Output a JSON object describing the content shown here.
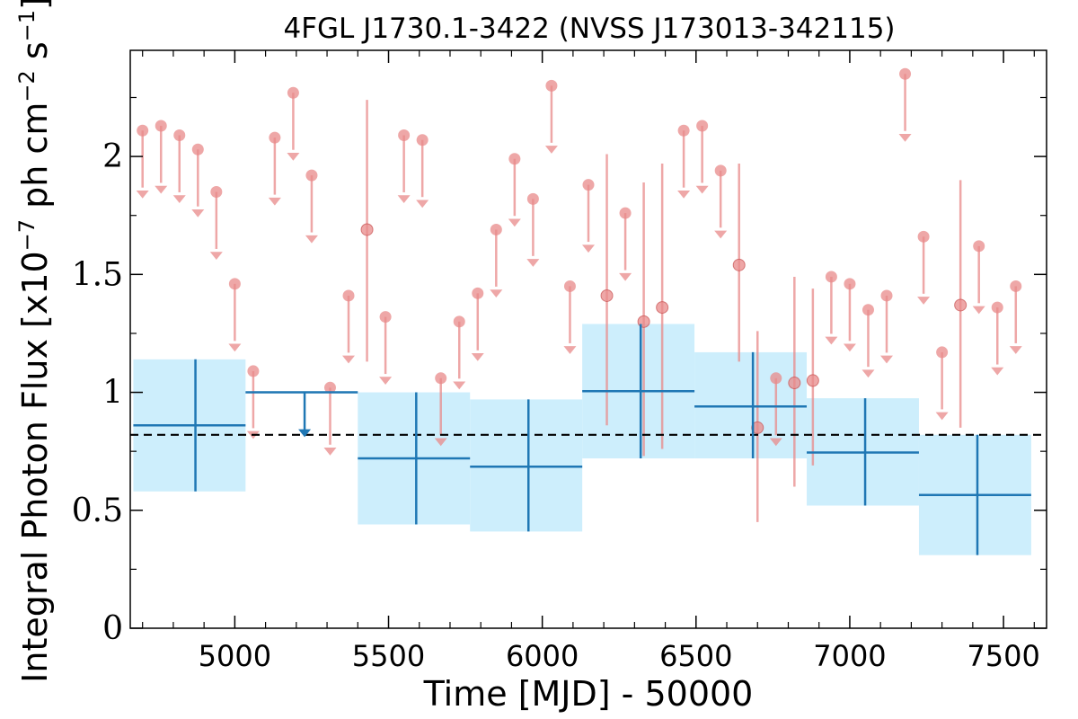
{
  "chart_data": {
    "type": "scatter",
    "title": "4FGL J1730.1-3422 (NVSS J173013-342115)",
    "xlabel": "Time [MJD] - 50000",
    "ylabel_base": "Integral Photon Flux [x10",
    "ylabel_exp1": "−7",
    "ylabel_mid": " ph cm",
    "ylabel_exp2": "−2",
    "ylabel_s": " s",
    "ylabel_exp3": "−1",
    "ylabel_end": "]",
    "xlim": [
      4660,
      7640
    ],
    "ylim": [
      0,
      2.45
    ],
    "xticks": [
      5000,
      5500,
      6000,
      6500,
      7000,
      7500
    ],
    "xtick_labels": [
      "5000",
      "5500",
      "6000",
      "6500",
      "7000",
      "7500"
    ],
    "yticks": [
      0,
      0.5,
      1,
      1.5,
      2
    ],
    "ytick_labels": [
      "0",
      "0.5",
      "1",
      "1.5",
      "2"
    ],
    "mean_flux": 0.82,
    "colors": {
      "yearly": "#1f77b4",
      "band": "#cdeefc",
      "monthly": "#e88a8a",
      "mean_line": "#000000"
    },
    "yearly_bins": [
      {
        "x_start": 4670,
        "x_end": 5035,
        "x": 4872,
        "y": 0.86,
        "err_lo": 0.58,
        "err_hi": 1.14,
        "upper_limit": false
      },
      {
        "x_start": 5035,
        "x_end": 5400,
        "x": 5227,
        "y": 1.0,
        "upper_limit": true
      },
      {
        "x_start": 5400,
        "x_end": 5765,
        "x": 5590,
        "y": 0.72,
        "err_lo": 0.44,
        "err_hi": 1.0,
        "upper_limit": false
      },
      {
        "x_start": 5765,
        "x_end": 6130,
        "x": 5955,
        "y": 0.685,
        "err_lo": 0.41,
        "err_hi": 0.97,
        "upper_limit": false
      },
      {
        "x_start": 6130,
        "x_end": 6495,
        "x": 6320,
        "y": 1.005,
        "err_lo": 0.72,
        "err_hi": 1.29,
        "upper_limit": false
      },
      {
        "x_start": 6495,
        "x_end": 6860,
        "x": 6685,
        "y": 0.94,
        "err_lo": 0.72,
        "err_hi": 1.17,
        "upper_limit": false
      },
      {
        "x_start": 6860,
        "x_end": 7225,
        "x": 7050,
        "y": 0.745,
        "err_lo": 0.52,
        "err_hi": 0.975,
        "upper_limit": false
      },
      {
        "x_start": 7225,
        "x_end": 7590,
        "x": 7415,
        "y": 0.565,
        "err_lo": 0.31,
        "err_hi": 0.82,
        "upper_limit": false
      }
    ],
    "monthly_points": [
      {
        "x": 4700,
        "y": 2.11,
        "upper_limit": true
      },
      {
        "x": 4760,
        "y": 2.13,
        "upper_limit": true
      },
      {
        "x": 4820,
        "y": 2.09,
        "upper_limit": true
      },
      {
        "x": 4880,
        "y": 2.03,
        "upper_limit": true
      },
      {
        "x": 4940,
        "y": 1.85,
        "upper_limit": true
      },
      {
        "x": 5000,
        "y": 1.46,
        "upper_limit": true
      },
      {
        "x": 5060,
        "y": 1.09,
        "upper_limit": true
      },
      {
        "x": 5130,
        "y": 2.08,
        "upper_limit": true
      },
      {
        "x": 5190,
        "y": 2.27,
        "upper_limit": true
      },
      {
        "x": 5250,
        "y": 1.92,
        "upper_limit": true
      },
      {
        "x": 5310,
        "y": 1.02,
        "upper_limit": true
      },
      {
        "x": 5370,
        "y": 1.41,
        "upper_limit": true
      },
      {
        "x": 5430,
        "y": 1.69,
        "upper_limit": false,
        "err_lo": 1.13,
        "err_hi": 2.24
      },
      {
        "x": 5490,
        "y": 1.32,
        "upper_limit": true
      },
      {
        "x": 5550,
        "y": 2.09,
        "upper_limit": true
      },
      {
        "x": 5610,
        "y": 2.07,
        "upper_limit": true
      },
      {
        "x": 5670,
        "y": 1.06,
        "upper_limit": true
      },
      {
        "x": 5730,
        "y": 1.3,
        "upper_limit": true
      },
      {
        "x": 5790,
        "y": 1.42,
        "upper_limit": true
      },
      {
        "x": 5850,
        "y": 1.69,
        "upper_limit": true
      },
      {
        "x": 5910,
        "y": 1.99,
        "upper_limit": true
      },
      {
        "x": 5970,
        "y": 1.82,
        "upper_limit": true
      },
      {
        "x": 6030,
        "y": 2.3,
        "upper_limit": true
      },
      {
        "x": 6090,
        "y": 1.45,
        "upper_limit": true
      },
      {
        "x": 6150,
        "y": 1.88,
        "upper_limit": true
      },
      {
        "x": 6210,
        "y": 1.41,
        "upper_limit": false,
        "err_lo": 0.86,
        "err_hi": 2.01
      },
      {
        "x": 6270,
        "y": 1.76,
        "upper_limit": true
      },
      {
        "x": 6330,
        "y": 1.3,
        "upper_limit": false,
        "err_lo": 0.73,
        "err_hi": 1.89
      },
      {
        "x": 6390,
        "y": 1.36,
        "upper_limit": false,
        "err_lo": 0.76,
        "err_hi": 1.97
      },
      {
        "x": 6460,
        "y": 2.11,
        "upper_limit": true
      },
      {
        "x": 6520,
        "y": 2.13,
        "upper_limit": true
      },
      {
        "x": 6580,
        "y": 1.94,
        "upper_limit": true
      },
      {
        "x": 6640,
        "y": 1.54,
        "upper_limit": false,
        "err_lo": 1.13,
        "err_hi": 1.97
      },
      {
        "x": 6700,
        "y": 0.85,
        "upper_limit": false,
        "err_lo": 0.45,
        "err_hi": 1.26
      },
      {
        "x": 6760,
        "y": 1.06,
        "upper_limit": true
      },
      {
        "x": 6820,
        "y": 1.04,
        "upper_limit": false,
        "err_lo": 0.6,
        "err_hi": 1.49
      },
      {
        "x": 6880,
        "y": 1.05,
        "upper_limit": false,
        "err_lo": 0.69,
        "err_hi": 1.44
      },
      {
        "x": 6940,
        "y": 1.49,
        "upper_limit": true
      },
      {
        "x": 7000,
        "y": 1.46,
        "upper_limit": true
      },
      {
        "x": 7060,
        "y": 1.35,
        "upper_limit": true
      },
      {
        "x": 7120,
        "y": 1.41,
        "upper_limit": true
      },
      {
        "x": 7180,
        "y": 2.35,
        "upper_limit": true
      },
      {
        "x": 7240,
        "y": 1.66,
        "upper_limit": true
      },
      {
        "x": 7300,
        "y": 1.17,
        "upper_limit": true
      },
      {
        "x": 7360,
        "y": 1.37,
        "upper_limit": false,
        "err_lo": 0.85,
        "err_hi": 1.9
      },
      {
        "x": 7420,
        "y": 1.62,
        "upper_limit": true
      },
      {
        "x": 7480,
        "y": 1.36,
        "upper_limit": true
      },
      {
        "x": 7540,
        "y": 1.45,
        "upper_limit": true
      }
    ]
  }
}
